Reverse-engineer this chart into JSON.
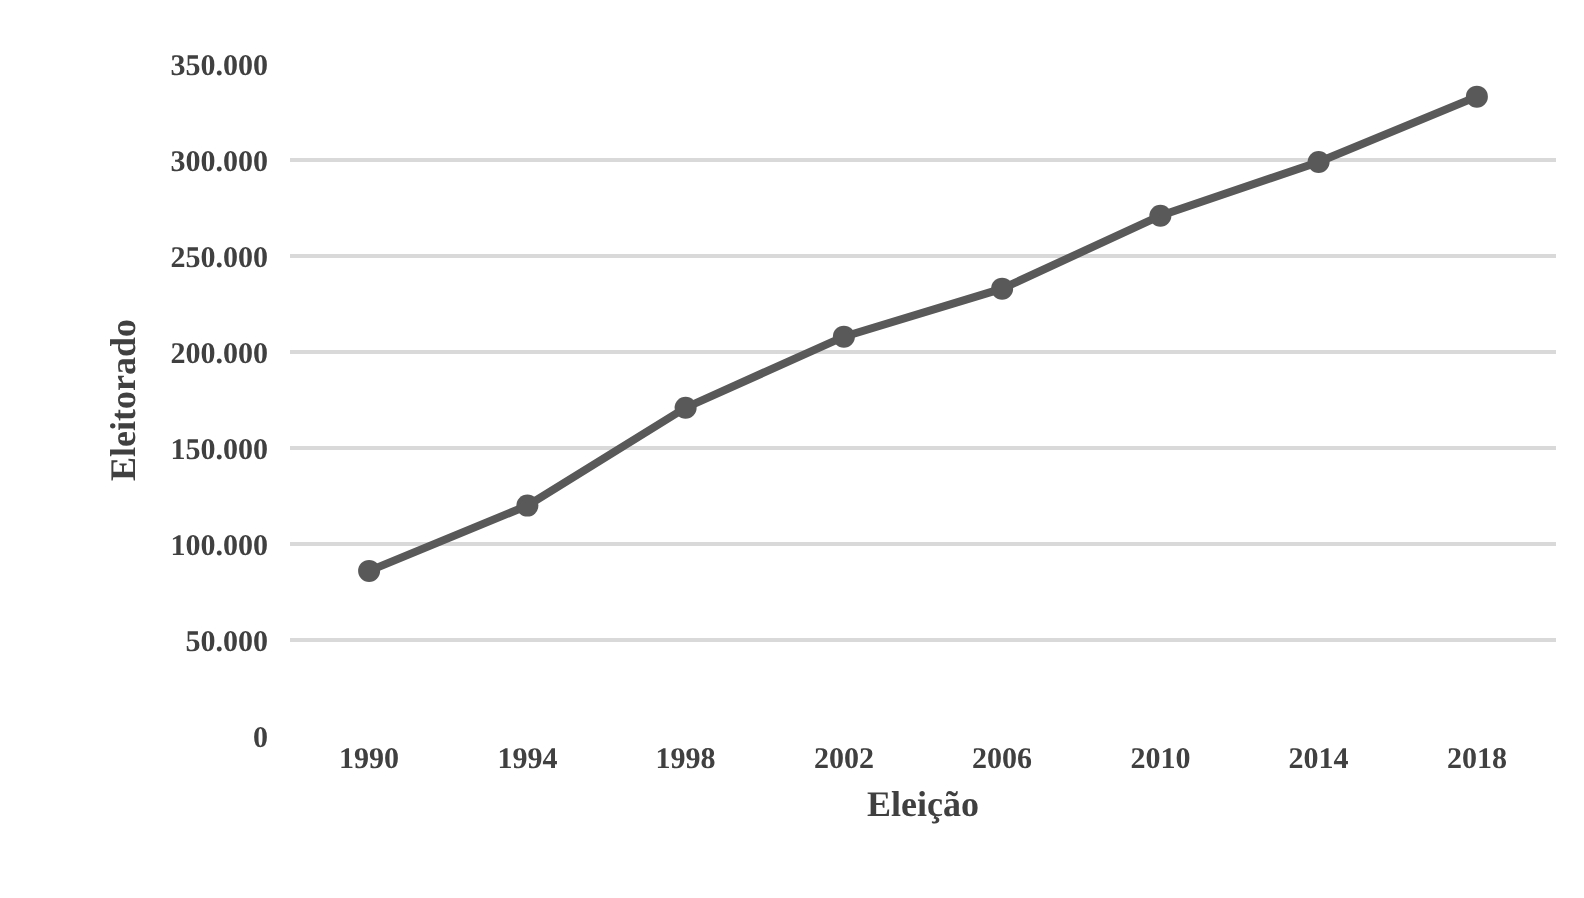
{
  "chart_data": {
    "type": "line",
    "xlabel": "Eleição",
    "ylabel": "Eleitorado",
    "categories": [
      "1990",
      "1994",
      "1998",
      "2002",
      "2006",
      "2010",
      "2014",
      "2018"
    ],
    "series": [
      {
        "color": "#595959",
        "values": [
          86000,
          120000,
          171000,
          208000,
          233000,
          271000,
          299000,
          333000
        ]
      }
    ],
    "ylim": [
      0,
      350000
    ],
    "yticks": [
      {
        "value": 0,
        "label": "0"
      },
      {
        "value": 50000,
        "label": "50.000"
      },
      {
        "value": 100000,
        "label": "100.000"
      },
      {
        "value": 150000,
        "label": "150.000"
      },
      {
        "value": 200000,
        "label": "200.000"
      },
      {
        "value": 250000,
        "label": "250.000"
      },
      {
        "value": 300000,
        "label": "300.000"
      },
      {
        "value": 350000,
        "label": "350.000"
      }
    ],
    "grid": "y",
    "marker": "circle",
    "line_style": "solid",
    "legend": false
  }
}
